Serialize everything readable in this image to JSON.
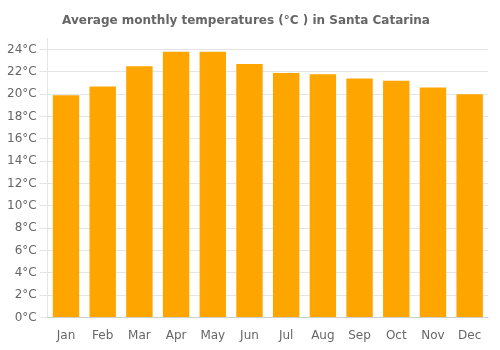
{
  "chart_data": {
    "type": "bar",
    "title": "Average monthly temperatures (°C ) in Santa Catarina",
    "categories": [
      "Jan",
      "Feb",
      "Mar",
      "Apr",
      "May",
      "Jun",
      "Jul",
      "Aug",
      "Sep",
      "Oct",
      "Nov",
      "Dec"
    ],
    "values": [
      19.9,
      20.7,
      22.5,
      23.8,
      23.8,
      22.7,
      21.9,
      21.8,
      21.4,
      21.2,
      20.6,
      20.0
    ],
    "color": "#FFA500",
    "ylim": [
      0,
      25
    ],
    "yticks": [
      {
        "value": 0,
        "label": "0°C"
      },
      {
        "value": 2,
        "label": "2°C"
      },
      {
        "value": 4,
        "label": "4°C"
      },
      {
        "value": 6,
        "label": "6°C"
      },
      {
        "value": 8,
        "label": "8°C"
      },
      {
        "value": 10,
        "label": "10°C"
      },
      {
        "value": 12,
        "label": "12°C"
      },
      {
        "value": 14,
        "label": "14°C"
      },
      {
        "value": 16,
        "label": "16°C"
      },
      {
        "value": 18,
        "label": "18°C"
      },
      {
        "value": 20,
        "label": "20°C"
      },
      {
        "value": 22,
        "label": "22°C"
      },
      {
        "value": 24,
        "label": "24°C"
      }
    ],
    "grid": true
  }
}
